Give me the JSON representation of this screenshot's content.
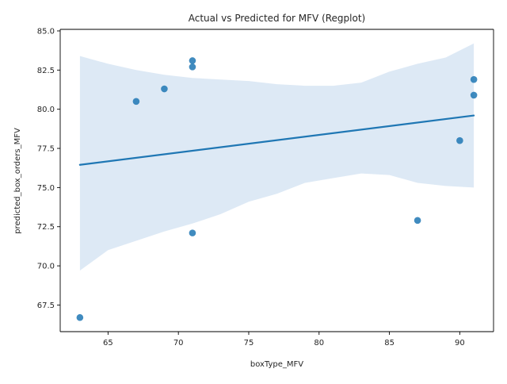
{
  "chart_data": {
    "type": "scatter",
    "title": "Actual vs Predicted for MFV (Regplot)",
    "xlabel": "boxType_MFV",
    "ylabel": "predicted_box_orders_MFV",
    "xlim": [
      61.6,
      92.4
    ],
    "ylim": [
      65.8,
      85.1
    ],
    "xticks": [
      65,
      70,
      75,
      80,
      85,
      90
    ],
    "yticks": [
      67.5,
      70.0,
      72.5,
      75.0,
      77.5,
      80.0,
      82.5,
      85.0
    ],
    "xtick_labels": [
      "65",
      "70",
      "75",
      "80",
      "85",
      "90"
    ],
    "ytick_labels": [
      "67.5",
      "70.0",
      "72.5",
      "75.0",
      "77.5",
      "80.0",
      "82.5",
      "85.0"
    ],
    "points": [
      {
        "x": 63,
        "y": 66.7
      },
      {
        "x": 67,
        "y": 80.5
      },
      {
        "x": 69,
        "y": 81.3
      },
      {
        "x": 71,
        "y": 83.1
      },
      {
        "x": 71,
        "y": 82.7
      },
      {
        "x": 71,
        "y": 72.1
      },
      {
        "x": 87,
        "y": 72.9
      },
      {
        "x": 90,
        "y": 78.0
      },
      {
        "x": 91,
        "y": 81.9
      },
      {
        "x": 91,
        "y": 80.9
      }
    ],
    "regression_line": {
      "x": [
        63,
        91
      ],
      "y": [
        76.45,
        79.6
      ]
    },
    "confidence_band": {
      "x": [
        63,
        65,
        67,
        69,
        71,
        73,
        75,
        77,
        79,
        81,
        83,
        85,
        87,
        89,
        91
      ],
      "upper": [
        83.4,
        82.9,
        82.5,
        82.2,
        82.0,
        81.9,
        81.8,
        81.6,
        81.5,
        81.5,
        81.7,
        82.4,
        82.9,
        83.3,
        84.2
      ],
      "lower": [
        69.7,
        71.0,
        71.6,
        72.2,
        72.7,
        73.3,
        74.1,
        74.6,
        75.3,
        75.6,
        75.9,
        75.8,
        75.3,
        75.1,
        75.0
      ]
    },
    "grid": false,
    "colors": {
      "points": "#1f77b4",
      "line": "#1f77b4",
      "band": "#c6dbef"
    }
  }
}
